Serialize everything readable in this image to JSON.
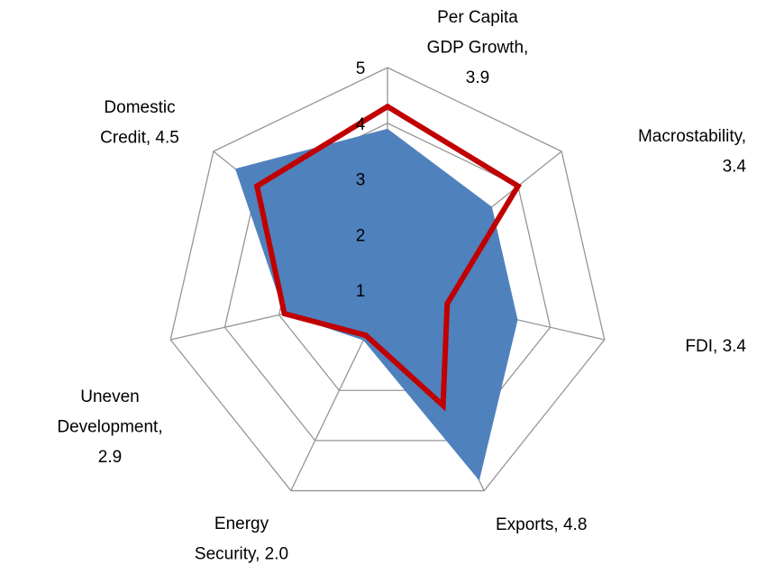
{
  "chart_data": {
    "type": "radar",
    "categories": [
      [
        "Per Capita",
        "GDP Growth,",
        "3.9"
      ],
      [
        "Macrostability,",
        "3.4"
      ],
      [
        "FDI, 3.4"
      ],
      [
        "Exports, 4.8"
      ],
      [
        "Energy",
        "Security, 2.0"
      ],
      [
        "Uneven",
        "Development,",
        "2.9"
      ],
      [
        "Domestic",
        "Credit, 4.5"
      ]
    ],
    "series": [
      {
        "color": "#4f81bd",
        "fill": true,
        "values": [
          3.9,
          3.4,
          3.4,
          4.8,
          2.0,
          2.9,
          4.5
        ]
      },
      {
        "color": "#c00000",
        "fill": false,
        "values": [
          4.3,
          4.0,
          2.1,
          3.3,
          1.9,
          2.9,
          4.0
        ]
      }
    ],
    "ylim": [
      1,
      5
    ],
    "yticks": [
      1,
      2,
      3,
      4,
      5
    ],
    "grid": true
  }
}
